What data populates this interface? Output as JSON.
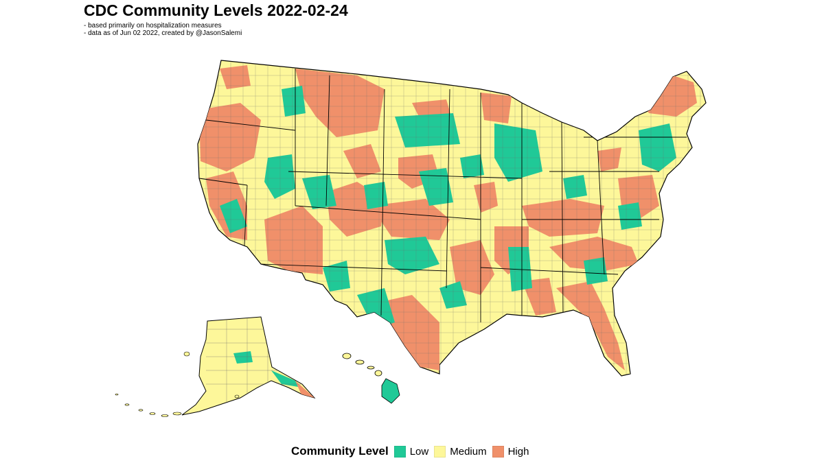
{
  "title": "CDC Community Levels 2022-02-24",
  "subtitle_lines": [
    "- based primarily on hospitalization measures",
    "- data as of Jun 02 2022, created by @JasonSalemi"
  ],
  "legend": {
    "title": "Community Level",
    "items": [
      {
        "label": "Low",
        "color": "#20c997"
      },
      {
        "label": "Medium",
        "color": "#fdf79a"
      },
      {
        "label": "High",
        "color": "#f0906a"
      }
    ]
  },
  "colors": {
    "low": "#20c997",
    "medium": "#fdf79a",
    "high": "#f0906a",
    "county_border": "#555555",
    "state_border": "#000000"
  }
}
